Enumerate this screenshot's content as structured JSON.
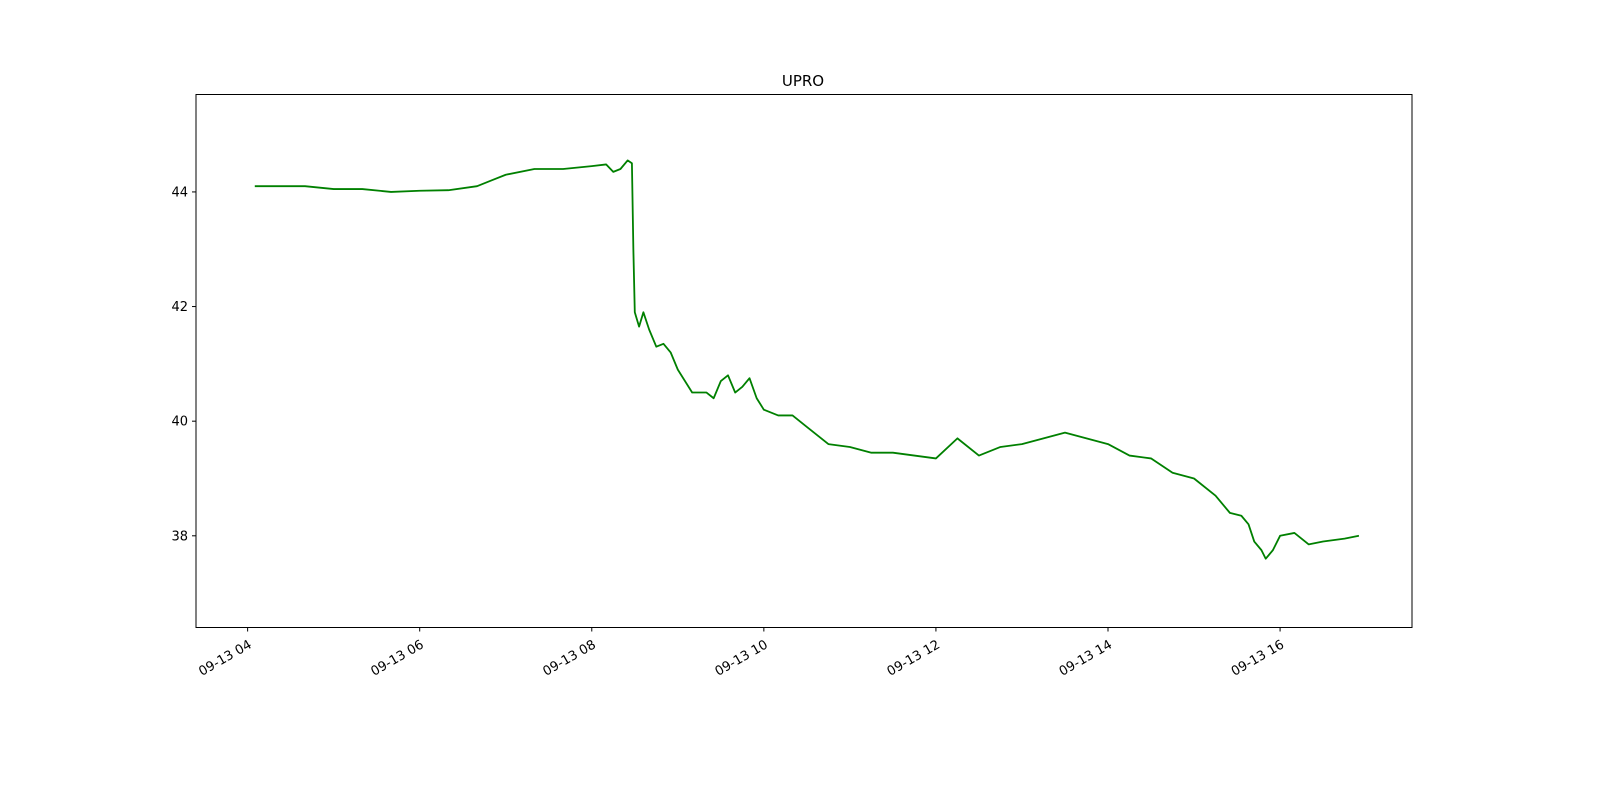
{
  "chart_data": {
    "type": "line",
    "title": "UPRO",
    "xlabel": "",
    "ylabel": "",
    "grid": false,
    "legend": "none",
    "line_color": "#008000",
    "x_ticks": [
      {
        "value": "2019-09-13T04:00",
        "label": "09-13 04"
      },
      {
        "value": "2019-09-13T06:00",
        "label": "09-13 06"
      },
      {
        "value": "2019-09-13T08:00",
        "label": "09-13 08"
      },
      {
        "value": "2019-09-13T10:00",
        "label": "09-13 10"
      },
      {
        "value": "2019-09-13T12:00",
        "label": "09-13 12"
      },
      {
        "value": "2019-09-13T14:00",
        "label": "09-13 14"
      },
      {
        "value": "2019-09-13T16:00",
        "label": "09-13 16"
      }
    ],
    "y_ticks": [
      38,
      40,
      42,
      44
    ],
    "xlim": [
      "2019-09-13T03:24",
      "2019-09-13T17:32"
    ],
    "ylim": [
      36.4,
      45.7
    ],
    "series": [
      {
        "x": [
          "2019-09-13T04:05",
          "2019-09-13T04:20",
          "2019-09-13T04:40",
          "2019-09-13T05:00",
          "2019-09-13T05:20",
          "2019-09-13T05:40",
          "2019-09-13T06:00",
          "2019-09-13T06:20",
          "2019-09-13T06:40",
          "2019-09-13T06:50",
          "2019-09-13T07:00",
          "2019-09-13T07:20",
          "2019-09-13T07:40",
          "2019-09-13T08:00",
          "2019-09-13T08:10",
          "2019-09-13T08:15",
          "2019-09-13T08:20",
          "2019-09-13T08:25",
          "2019-09-13T08:28",
          "2019-09-13T08:29",
          "2019-09-13T08:30",
          "2019-09-13T08:33",
          "2019-09-13T08:36",
          "2019-09-13T08:40",
          "2019-09-13T08:45",
          "2019-09-13T08:50",
          "2019-09-13T08:55",
          "2019-09-13T09:00",
          "2019-09-13T09:10",
          "2019-09-13T09:20",
          "2019-09-13T09:25",
          "2019-09-13T09:30",
          "2019-09-13T09:35",
          "2019-09-13T09:40",
          "2019-09-13T09:45",
          "2019-09-13T09:50",
          "2019-09-13T09:55",
          "2019-09-13T10:00",
          "2019-09-13T10:10",
          "2019-09-13T10:20",
          "2019-09-13T10:30",
          "2019-09-13T10:45",
          "2019-09-13T11:00",
          "2019-09-13T11:15",
          "2019-09-13T11:30",
          "2019-09-13T11:45",
          "2019-09-13T12:00",
          "2019-09-13T12:15",
          "2019-09-13T12:30",
          "2019-09-13T12:45",
          "2019-09-13T13:00",
          "2019-09-13T13:15",
          "2019-09-13T13:30",
          "2019-09-13T13:45",
          "2019-09-13T14:00",
          "2019-09-13T14:15",
          "2019-09-13T14:30",
          "2019-09-13T14:45",
          "2019-09-13T15:00",
          "2019-09-13T15:15",
          "2019-09-13T15:25",
          "2019-09-13T15:33",
          "2019-09-13T15:38",
          "2019-09-13T15:42",
          "2019-09-13T15:47",
          "2019-09-13T15:50",
          "2019-09-13T15:55",
          "2019-09-13T16:00",
          "2019-09-13T16:10",
          "2019-09-13T16:20",
          "2019-09-13T16:30",
          "2019-09-13T16:45",
          "2019-09-13T16:55"
        ],
        "y": [
          44.1,
          44.1,
          44.1,
          44.05,
          44.05,
          44.0,
          44.02,
          44.03,
          44.1,
          44.2,
          44.3,
          44.4,
          44.4,
          44.45,
          44.48,
          44.35,
          44.4,
          44.55,
          44.5,
          43.0,
          41.9,
          41.65,
          41.9,
          41.6,
          41.3,
          41.35,
          41.2,
          40.9,
          40.5,
          40.5,
          40.4,
          40.7,
          40.8,
          40.5,
          40.6,
          40.75,
          40.4,
          40.2,
          40.1,
          40.1,
          39.9,
          39.6,
          39.55,
          39.45,
          39.45,
          39.4,
          39.35,
          39.7,
          39.4,
          39.55,
          39.6,
          39.7,
          39.8,
          39.7,
          39.6,
          39.4,
          39.35,
          39.1,
          39.0,
          38.7,
          38.4,
          38.35,
          38.2,
          37.9,
          37.75,
          37.6,
          37.75,
          38.0,
          38.05,
          37.85,
          37.9,
          37.95,
          38.0
        ]
      }
    ]
  }
}
